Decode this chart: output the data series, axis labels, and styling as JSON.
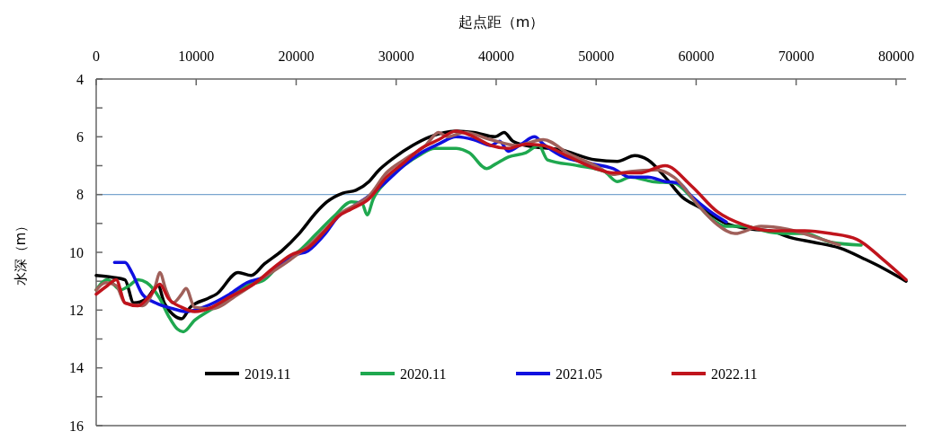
{
  "chart_data": {
    "type": "line",
    "xlabel": "起点距（m）",
    "ylabel": "水深（m）",
    "xlim": [
      0,
      81000
    ],
    "xticks": [
      0,
      10000,
      20000,
      30000,
      40000,
      50000,
      60000,
      70000,
      80000
    ],
    "ylim": [
      16,
      4
    ],
    "yticks": [
      4,
      {
        "value": 5,
        "label": null
      },
      6,
      {
        "value": 7,
        "label": null
      },
      8,
      {
        "value": 9,
        "label": null
      },
      10,
      {
        "value": 11,
        "label": null
      },
      12,
      {
        "value": 13,
        "label": null
      },
      14,
      {
        "value": 15,
        "label": null
      },
      16
    ],
    "grid": false,
    "legend": "bottom",
    "line_style": "solid",
    "ref_lines": [
      {
        "axis": "y",
        "value": 8,
        "color": "#7aa6cf"
      }
    ],
    "series": [
      {
        "name": "2019.11",
        "color": "#000000",
        "x": [
          0,
          1570,
          2880,
          3750,
          5050,
          6190,
          6800,
          7670,
          8540,
          9410,
          11150,
          12020,
          14200,
          15500,
          16820,
          18560,
          20300,
          22050,
          23090,
          24660,
          25970,
          27280,
          28150,
          29890,
          31640,
          33380,
          35990,
          37740,
          39910,
          40790,
          41660,
          42970,
          46450,
          49940,
          52120,
          53860,
          55170,
          56910,
          58650,
          60400,
          63010,
          65620,
          67370,
          69550,
          71720,
          74340,
          76950,
          78700,
          81000
        ],
        "values": [
          10.8,
          10.86,
          10.95,
          11.75,
          11.6,
          11.15,
          11.75,
          12.15,
          12.3,
          11.9,
          11.6,
          11.45,
          10.7,
          10.8,
          10.4,
          9.95,
          9.35,
          8.6,
          8.25,
          7.95,
          7.85,
          7.55,
          7.2,
          6.7,
          6.3,
          6.0,
          5.8,
          5.85,
          6.0,
          5.85,
          6.15,
          6.3,
          6.45,
          6.8,
          6.85,
          6.65,
          6.8,
          7.4,
          8.1,
          8.45,
          9.0,
          9.2,
          9.25,
          9.5,
          9.65,
          9.85,
          10.25,
          10.55,
          11.0
        ]
      },
      {
        "name": "2020.11",
        "color": "#1fa84f",
        "x": [
          0,
          1130,
          2440,
          3310,
          4180,
          5050,
          6360,
          7230,
          8100,
          8720,
          9850,
          11150,
          13330,
          15080,
          16820,
          18560,
          20310,
          22050,
          23790,
          25530,
          26580,
          27100,
          27710,
          29020,
          30760,
          32510,
          33810,
          35990,
          37300,
          39040,
          39910,
          41220,
          42970,
          44270,
          45140,
          48190,
          50810,
          52110,
          53420,
          55600,
          57780,
          59520,
          61260,
          63010,
          64750,
          67370,
          69110,
          70850,
          73460,
          76510
        ],
        "values": [
          11.3,
          10.95,
          11.3,
          11.15,
          10.95,
          11.05,
          11.6,
          12.2,
          12.65,
          12.75,
          12.35,
          12.05,
          11.6,
          11.15,
          10.95,
          10.35,
          9.95,
          9.35,
          8.75,
          8.25,
          8.3,
          8.7,
          8.15,
          7.55,
          7.0,
          6.6,
          6.4,
          6.4,
          6.55,
          7.1,
          6.95,
          6.7,
          6.55,
          6.3,
          6.8,
          7.0,
          7.2,
          7.55,
          7.4,
          7.55,
          7.6,
          8.1,
          8.75,
          9.1,
          9.1,
          9.3,
          9.35,
          9.35,
          9.65,
          9.75
        ]
      },
      {
        "name": "2021.05",
        "color": "#1010e0",
        "x": [
          1830,
          2880,
          3570,
          4620,
          5930,
          7670,
          8980,
          10720,
          13330,
          15080,
          16820,
          18560,
          19870,
          21180,
          22920,
          24230,
          25530,
          27280,
          29020,
          30760,
          32510,
          34250,
          35990,
          37740,
          39480,
          40350,
          41220,
          42530,
          43840,
          44710,
          46450,
          49070,
          51680,
          53420,
          55170,
          56910,
          58220,
          59520,
          61260,
          63010
        ],
        "values": [
          10.35,
          10.35,
          10.7,
          11.45,
          11.75,
          11.95,
          12.05,
          11.9,
          11.45,
          11.05,
          10.85,
          10.4,
          10.1,
          9.95,
          9.35,
          8.75,
          8.45,
          8.05,
          7.55,
          7.0,
          6.55,
          6.25,
          6.0,
          6.1,
          6.3,
          6.15,
          6.5,
          6.25,
          6.0,
          6.25,
          6.65,
          6.9,
          7.1,
          7.4,
          7.4,
          7.55,
          7.6,
          8.05,
          8.55,
          8.95
        ]
      },
      {
        "color": "#a0605a",
        "x": [
          0,
          960,
          2000,
          2880,
          4620,
          5930,
          6360,
          6970,
          7670,
          8540,
          8980,
          9850,
          11590,
          14200,
          16820,
          19430,
          21610,
          22920,
          24660,
          25970,
          27280,
          29020,
          30760,
          32940,
          34250,
          35120,
          36860,
          39480,
          42090,
          44710,
          47320,
          49940,
          51680,
          53420,
          56040,
          57780,
          60400,
          62140,
          63880,
          66490,
          69110,
          71720,
          74340
        ],
        "values": [
          11.3,
          11.05,
          11.15,
          11.75,
          11.85,
          11.15,
          10.7,
          11.3,
          11.75,
          11.45,
          11.25,
          11.9,
          11.95,
          11.45,
          10.85,
          10.25,
          9.65,
          9.2,
          8.6,
          8.35,
          8.05,
          7.25,
          6.8,
          6.3,
          5.85,
          6.0,
          5.85,
          6.1,
          6.3,
          6.1,
          6.6,
          7.0,
          7.3,
          7.2,
          7.15,
          7.4,
          8.45,
          9.05,
          9.35,
          9.1,
          9.2,
          9.45,
          9.75
        ]
      },
      {
        "name": "2022.11",
        "color": "#c0141c",
        "x": [
          0,
          1130,
          2000,
          2880,
          4180,
          5490,
          6360,
          7230,
          8540,
          9850,
          11590,
          13330,
          15950,
          17690,
          19430,
          21180,
          22920,
          24230,
          25530,
          27280,
          29020,
          30760,
          32510,
          34250,
          35990,
          37740,
          39480,
          41220,
          42970,
          44710,
          47320,
          49940,
          51680,
          54290,
          56910,
          59520,
          62140,
          64750,
          67370,
          70850,
          73460,
          76080,
          78700,
          81000
        ],
        "values": [
          11.45,
          11.15,
          10.95,
          11.75,
          11.85,
          11.45,
          11.1,
          11.6,
          11.9,
          12.05,
          11.9,
          11.55,
          11.05,
          10.55,
          10.1,
          9.85,
          9.25,
          8.75,
          8.5,
          8.15,
          7.4,
          6.9,
          6.4,
          6.1,
          5.8,
          6.0,
          6.3,
          6.4,
          6.25,
          6.3,
          6.7,
          7.1,
          7.25,
          7.25,
          7.0,
          7.7,
          8.6,
          9.05,
          9.25,
          9.25,
          9.35,
          9.55,
          10.25,
          10.95
        ]
      }
    ]
  }
}
